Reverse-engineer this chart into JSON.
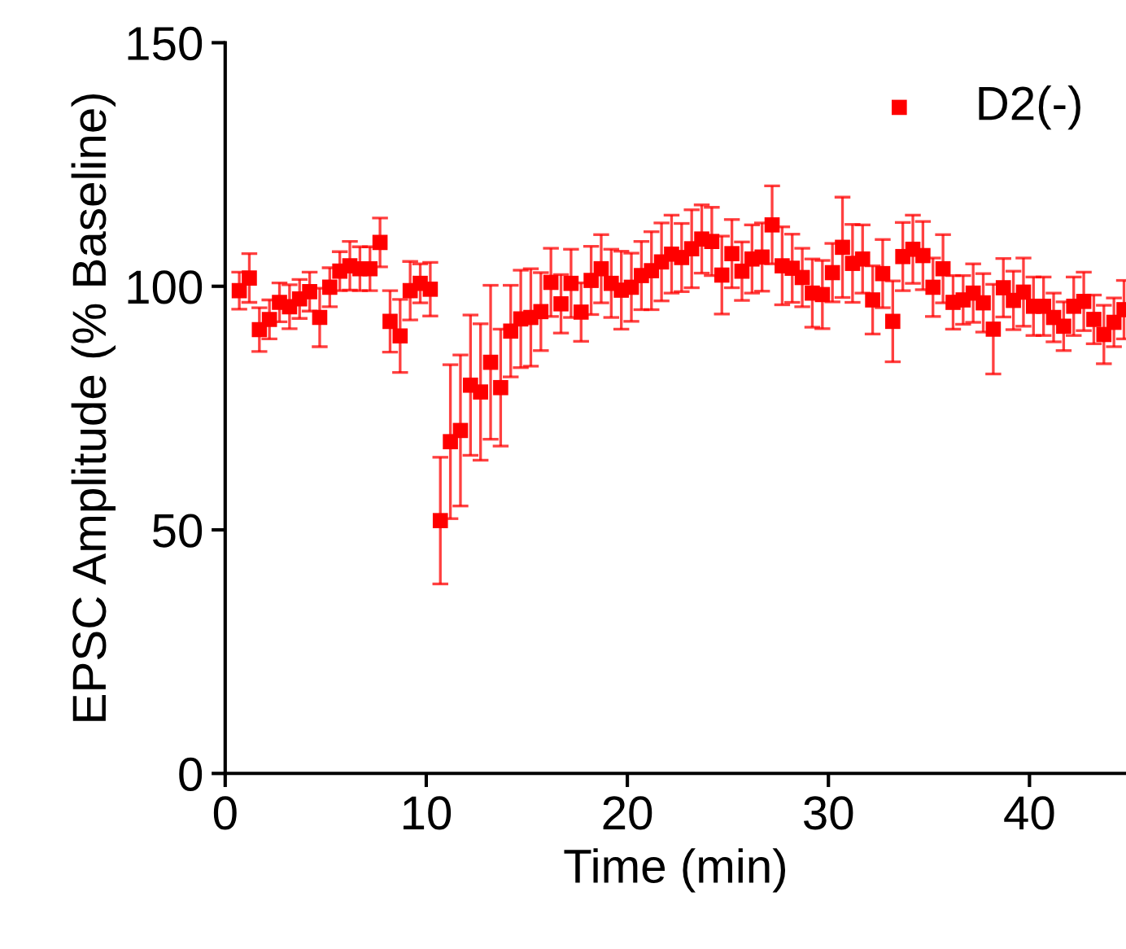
{
  "chart_data": {
    "type": "scatter",
    "xlabel": "Time (min)",
    "ylabel": "EPSC Amplitude (% Baseline)",
    "xlim": [
      0,
      44.8
    ],
    "ylim": [
      0,
      150
    ],
    "xticks": [
      0,
      10,
      20,
      30,
      40
    ],
    "yticks": [
      0,
      50,
      100,
      150
    ],
    "grid": false,
    "legend": "top right",
    "marker": "square",
    "series": [
      {
        "name": "D2(-)",
        "color": "#ff0000",
        "x": [
          0.7,
          1.2,
          1.7,
          2.2,
          2.7,
          3.2,
          3.7,
          4.2,
          4.7,
          5.2,
          5.7,
          6.2,
          6.7,
          7.2,
          7.7,
          8.2,
          8.7,
          9.2,
          9.7,
          10.2,
          10.7,
          11.2,
          11.7,
          12.2,
          12.7,
          13.2,
          13.7,
          14.2,
          14.7,
          15.2,
          15.7,
          16.2,
          16.7,
          17.2,
          17.7,
          18.2,
          18.7,
          19.2,
          19.7,
          20.2,
          20.7,
          21.2,
          21.7,
          22.2,
          22.7,
          23.2,
          23.7,
          24.2,
          24.7,
          25.2,
          25.7,
          26.2,
          26.7,
          27.2,
          27.7,
          28.2,
          28.7,
          29.2,
          29.7,
          30.2,
          30.7,
          31.2,
          31.7,
          32.2,
          32.7,
          33.2,
          33.7,
          34.2,
          34.7,
          35.2,
          35.7,
          36.2,
          36.7,
          37.2,
          37.7,
          38.2,
          38.7,
          39.2,
          39.7,
          40.2,
          40.7,
          41.2,
          41.7,
          42.2,
          42.7,
          43.2,
          43.7,
          44.2,
          44.7
        ],
        "values": [
          99.1,
          101.7,
          91.1,
          93.2,
          96.7,
          95.8,
          97.4,
          98.9,
          93.6,
          99.8,
          103.1,
          104.2,
          103.6,
          103.6,
          109,
          92.8,
          89.8,
          99.1,
          100.6,
          99.4,
          51.9,
          68.1,
          70.4,
          79.7,
          78.3,
          84.4,
          79.2,
          90.8,
          93.3,
          93.6,
          94.8,
          100.8,
          96.4,
          100.6,
          94.7,
          101.2,
          103.6,
          100.6,
          99.2,
          99.8,
          102.2,
          103.2,
          105,
          106.6,
          105.9,
          107.7,
          109.7,
          109.2,
          102.3,
          106.7,
          103.1,
          105.6,
          106,
          112.6,
          104.2,
          103.7,
          101.8,
          98.6,
          98.3,
          102.8,
          108,
          104.7,
          105.6,
          97.2,
          102.6,
          92.8,
          106.1,
          107.6,
          106.3,
          99.8,
          103.6,
          96.7,
          97.2,
          98.6,
          96.6,
          91.2,
          99.7,
          97.1,
          98.8,
          95.9,
          95.9,
          93.6,
          91.8,
          95.9,
          96.9,
          93.2,
          90.1,
          92.6,
          95.2
        ],
        "errors": [
          3.8,
          5,
          4.5,
          4,
          4,
          4.5,
          4,
          4,
          6,
          4,
          4,
          5,
          4.5,
          4.5,
          5,
          6.3,
          7.5,
          6,
          4,
          5.5,
          13,
          15.8,
          15.5,
          14.4,
          14,
          15.8,
          12,
          9.4,
          10,
          10,
          8,
          7,
          6,
          7,
          6,
          7,
          7,
          7,
          8,
          7,
          7,
          8,
          8,
          8,
          7,
          8,
          7,
          7,
          8,
          7,
          6,
          7,
          7,
          8,
          8,
          7,
          6,
          7,
          7,
          6,
          10.3,
          8,
          7,
          7,
          7,
          8.3,
          7,
          7,
          7,
          6,
          7,
          5.5,
          5,
          6,
          6,
          9.2,
          6,
          6,
          7,
          6,
          6,
          5,
          5,
          6,
          6,
          5,
          6,
          5,
          6
        ]
      }
    ]
  }
}
